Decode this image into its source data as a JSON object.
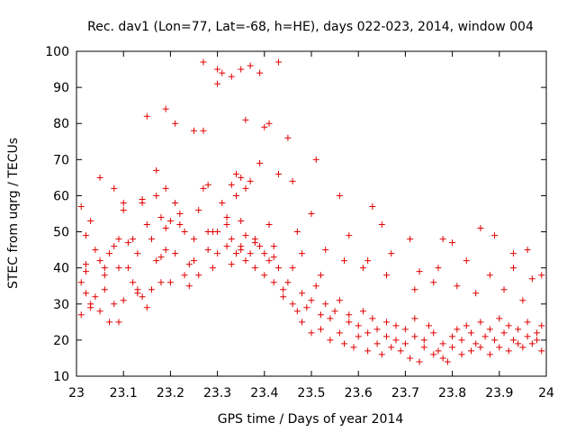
{
  "chart_data": {
    "type": "scatter",
    "title": "Rec. dav1 (Lon=77, Lat=-68, h=HE), days 022-023, 2014, window 004",
    "xlabel": "GPS time / Days of year 2014",
    "ylabel": "STEC from uqrg / TECUs",
    "xlim": [
      23,
      24
    ],
    "ylim": [
      10,
      100
    ],
    "x_ticks": [
      23,
      23.1,
      23.2,
      23.3,
      23.4,
      23.5,
      23.6,
      23.7,
      23.8,
      23.9,
      24
    ],
    "x_tick_labels": [
      "23",
      "23.1",
      "23.2",
      "23.3",
      "23.4",
      "23.5",
      "23.6",
      "23.7",
      "23.8",
      "23.9",
      "24"
    ],
    "y_ticks": [
      10,
      20,
      30,
      40,
      50,
      60,
      70,
      80,
      90,
      100
    ],
    "y_tick_labels": [
      "10",
      "20",
      "30",
      "40",
      "50",
      "60",
      "70",
      "80",
      "90",
      "100"
    ],
    "grid": false,
    "marker": "plus",
    "marker_color": "#e00000",
    "x": [
      23.01,
      23.01,
      23.01,
      23.02,
      23.02,
      23.03,
      23.03,
      23.04,
      23.04,
      23.05,
      23.05,
      23.06,
      23.06,
      23.07,
      23.07,
      23.08,
      23.08,
      23.09,
      23.09,
      23.1,
      23.1,
      23.11,
      23.12,
      23.12,
      23.13,
      23.13,
      23.14,
      23.14,
      23.15,
      23.15,
      23.16,
      23.16,
      23.17,
      23.17,
      23.18,
      23.18,
      23.19,
      23.19,
      23.2,
      23.2,
      23.21,
      23.21,
      23.22,
      23.23,
      23.23,
      23.24,
      23.25,
      23.25,
      23.26,
      23.26,
      23.27,
      23.28,
      23.28,
      23.29,
      23.3,
      23.3,
      23.31,
      23.32,
      23.32,
      23.33,
      23.33,
      23.34,
      23.34,
      23.35,
      23.35,
      23.36,
      23.36,
      23.37,
      23.38,
      23.38,
      23.39,
      23.4,
      23.4,
      23.41,
      23.42,
      23.42,
      23.43,
      23.44,
      23.44,
      23.45,
      23.46,
      23.46,
      23.47,
      23.48,
      23.48,
      23.49,
      23.5,
      23.5,
      23.51,
      23.52,
      23.52,
      23.53,
      23.54,
      23.54,
      23.55,
      23.56,
      23.56,
      23.57,
      23.58,
      23.58,
      23.59,
      23.6,
      23.6,
      23.61,
      23.62,
      23.62,
      23.63,
      23.64,
      23.64,
      23.65,
      23.66,
      23.66,
      23.67,
      23.68,
      23.68,
      23.69,
      23.7,
      23.7,
      23.71,
      23.72,
      23.72,
      23.73,
      23.74,
      23.74,
      23.75,
      23.76,
      23.76,
      23.77,
      23.78,
      23.78,
      23.79,
      23.8,
      23.8,
      23.81,
      23.82,
      23.82,
      23.83,
      23.84,
      23.84,
      23.85,
      23.86,
      23.86,
      23.87,
      23.88,
      23.88,
      23.89,
      23.9,
      23.9,
      23.91,
      23.92,
      23.92,
      23.93,
      23.94,
      23.94,
      23.95,
      23.96,
      23.96,
      23.97,
      23.98,
      23.98,
      23.99,
      23.99,
      23.02,
      23.05,
      23.08,
      23.1,
      23.15,
      23.17,
      23.19,
      23.21,
      23.25,
      23.27,
      23.3,
      23.31,
      23.33,
      23.35,
      23.37,
      23.39,
      23.41,
      23.43,
      23.45,
      23.51,
      23.33,
      23.35,
      23.3,
      23.37,
      23.27,
      23.34,
      23.39,
      23.36,
      23.43,
      23.4,
      23.46,
      23.5,
      23.56,
      23.63,
      23.65,
      23.71,
      23.78,
      23.8,
      23.86,
      23.89,
      23.93,
      23.96,
      23.02,
      23.06,
      23.11,
      23.14,
      23.19,
      23.22,
      23.28,
      23.32,
      23.36,
      23.41,
      23.47,
      23.53,
      23.58,
      23.62,
      23.67,
      23.73,
      23.77,
      23.83,
      23.88,
      23.93,
      23.97,
      23.03,
      23.09,
      23.13,
      23.18,
      23.24,
      23.29,
      23.35,
      23.38,
      23.42,
      23.48,
      23.52,
      23.57,
      23.61,
      23.66,
      23.72,
      23.76,
      23.81,
      23.85,
      23.91,
      23.95,
      23.99
    ],
    "y": [
      57,
      36,
      27,
      49,
      33,
      53,
      30,
      45,
      32,
      42,
      28,
      38,
      34,
      44,
      25,
      46,
      30,
      48,
      40,
      56,
      31,
      40,
      36,
      48,
      33,
      44,
      58,
      32,
      52,
      29,
      48,
      34,
      60,
      42,
      36,
      54,
      62,
      45,
      53,
      36,
      58,
      44,
      52,
      38,
      50,
      41,
      42,
      48,
      56,
      38,
      62,
      50,
      45,
      40,
      50,
      44,
      58,
      46,
      52,
      41,
      48,
      60,
      44,
      53,
      46,
      42,
      49,
      44,
      40,
      48,
      46,
      38,
      44,
      42,
      36,
      46,
      40,
      34,
      32,
      36,
      30,
      40,
      28,
      33,
      25,
      29,
      31,
      22,
      35,
      27,
      23,
      30,
      26,
      20,
      28,
      22,
      31,
      19,
      25,
      27,
      18,
      24,
      21,
      28,
      17,
      22,
      26,
      19,
      23,
      16,
      21,
      25,
      18,
      20,
      24,
      17,
      19,
      23,
      15,
      21,
      26,
      14,
      20,
      18,
      24,
      16,
      22,
      17,
      15,
      19,
      14,
      21,
      18,
      23,
      16,
      20,
      24,
      17,
      22,
      19,
      25,
      18,
      21,
      16,
      23,
      20,
      26,
      18,
      22,
      17,
      24,
      20,
      19,
      23,
      18,
      21,
      25,
      19,
      22,
      20,
      17,
      24,
      41,
      65,
      62,
      58,
      82,
      67,
      84,
      80,
      78,
      97,
      91,
      94,
      93,
      95,
      96,
      94,
      80,
      97,
      76,
      70,
      63,
      65,
      95,
      64,
      78,
      66,
      69,
      81,
      66,
      79,
      64,
      55,
      60,
      57,
      52,
      48,
      48,
      47,
      51,
      49,
      44,
      45,
      39,
      40,
      47,
      59,
      51,
      55,
      63,
      54,
      62,
      52,
      50,
      45,
      49,
      42,
      44,
      39,
      40,
      42,
      38,
      40,
      37,
      29,
      25,
      34,
      43,
      35,
      50,
      45,
      47,
      43,
      44,
      38,
      42,
      40,
      38,
      34,
      36,
      35,
      33,
      34,
      31,
      38
    ]
  }
}
